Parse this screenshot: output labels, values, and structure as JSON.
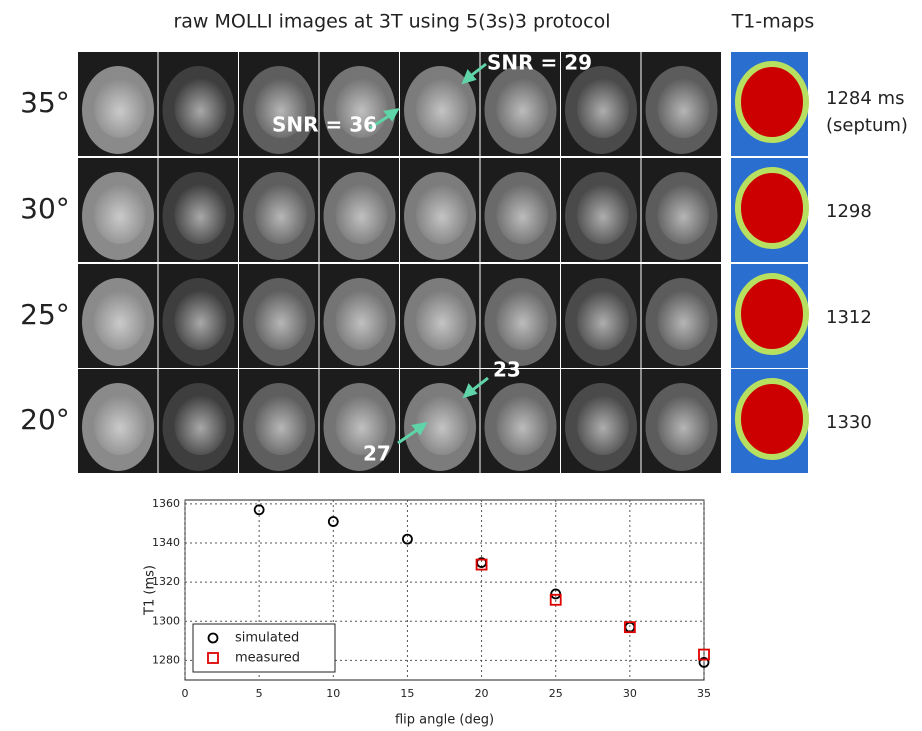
{
  "figure": {
    "title": "raw MOLLI images at 3T using 5(3s)3 protocol",
    "maps_title": "T1-maps",
    "rows": [
      {
        "angle": "35°",
        "t1": "1284 ms",
        "t1_note": "(septum)"
      },
      {
        "angle": "30°",
        "t1": "1298"
      },
      {
        "angle": "25°",
        "t1": "1312"
      },
      {
        "angle": "20°",
        "t1": "1330"
      }
    ],
    "annotations": [
      "SNR = 29",
      "SNR = 36",
      "23",
      "27"
    ]
  },
  "chart_data": {
    "type": "scatter",
    "xlabel": "flip angle (deg)",
    "ylabel": "T1 (ms)",
    "xlim": [
      0,
      35
    ],
    "ylim": [
      1270,
      1362
    ],
    "xticks": [
      0,
      5,
      10,
      15,
      20,
      25,
      30,
      35
    ],
    "yticks": [
      1280,
      1300,
      1320,
      1340,
      1360
    ],
    "grid": true,
    "legend": "lower left",
    "series": [
      {
        "name": "simulated",
        "color": "#000000",
        "marker": "circle",
        "x": [
          5,
          10,
          15,
          20,
          25,
          30,
          35
        ],
        "values": [
          1357,
          1351,
          1342,
          1330,
          1314,
          1297,
          1279
        ]
      },
      {
        "name": "measured",
        "color": "#e00000",
        "marker": "square",
        "x": [
          20,
          25,
          30,
          35
        ],
        "values": [
          1329,
          1311,
          1297,
          1283
        ]
      }
    ]
  }
}
